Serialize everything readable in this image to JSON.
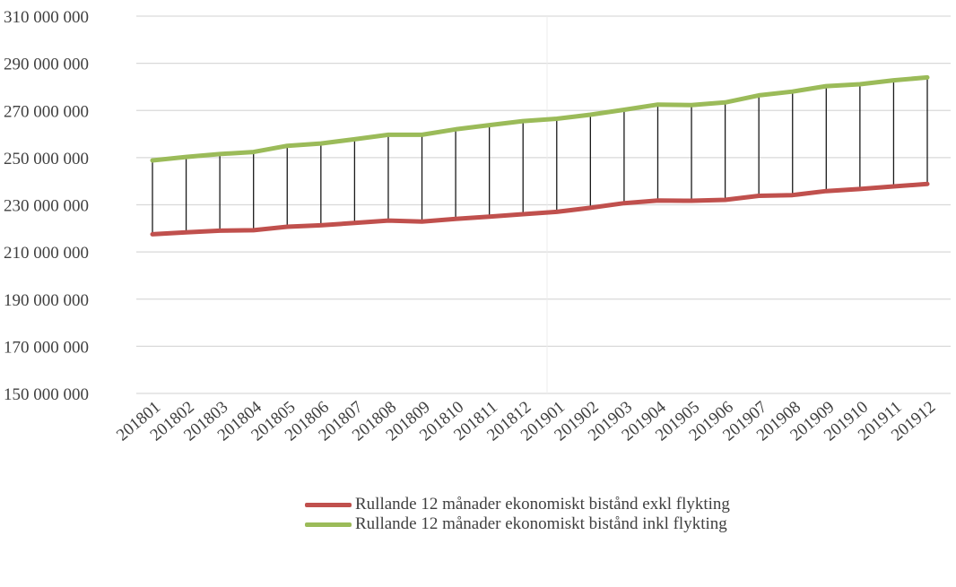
{
  "chart_data": {
    "type": "line",
    "title": "",
    "xlabel": "",
    "ylabel": "",
    "ylim": [
      150000000,
      310000000
    ],
    "yticks": [
      "150 000 000",
      "170 000 000",
      "190 000 000",
      "210 000 000",
      "230 000 000",
      "250 000 000",
      "270 000 000",
      "290 000 000",
      "310 000 000"
    ],
    "ytick_values": [
      150000000,
      170000000,
      190000000,
      210000000,
      230000000,
      250000000,
      270000000,
      290000000,
      310000000
    ],
    "categories": [
      "201801",
      "201802",
      "201803",
      "201804",
      "201805",
      "201806",
      "201807",
      "201808",
      "201809",
      "201810",
      "201811",
      "201812",
      "201901",
      "201902",
      "201903",
      "201904",
      "201905",
      "201906",
      "201907",
      "201908",
      "201909",
      "201910",
      "201911",
      "201912"
    ],
    "grid": true,
    "drop_lines": true,
    "legend_position": "bottom",
    "series": [
      {
        "name": "Rullande 12 månader ekonomiskt bistånd exkl flykting",
        "color": "#c0504d",
        "values": [
          217500000,
          218300000,
          219000000,
          219200000,
          220700000,
          221300000,
          222300000,
          223300000,
          222900000,
          224000000,
          225000000,
          226000000,
          227000000,
          228700000,
          230700000,
          231800000,
          231700000,
          232100000,
          233800000,
          234100000,
          235800000,
          236700000,
          237800000,
          238800000
        ]
      },
      {
        "name": "Rullande 12 månader ekonomiskt bistånd inkl flykting",
        "color": "#9bbb59",
        "values": [
          248800000,
          250300000,
          251500000,
          252400000,
          255000000,
          256000000,
          257800000,
          259700000,
          259700000,
          262000000,
          263800000,
          265500000,
          266500000,
          268200000,
          270300000,
          272500000,
          272300000,
          273400000,
          276400000,
          278000000,
          280300000,
          281100000,
          282800000,
          284000000
        ]
      }
    ]
  }
}
